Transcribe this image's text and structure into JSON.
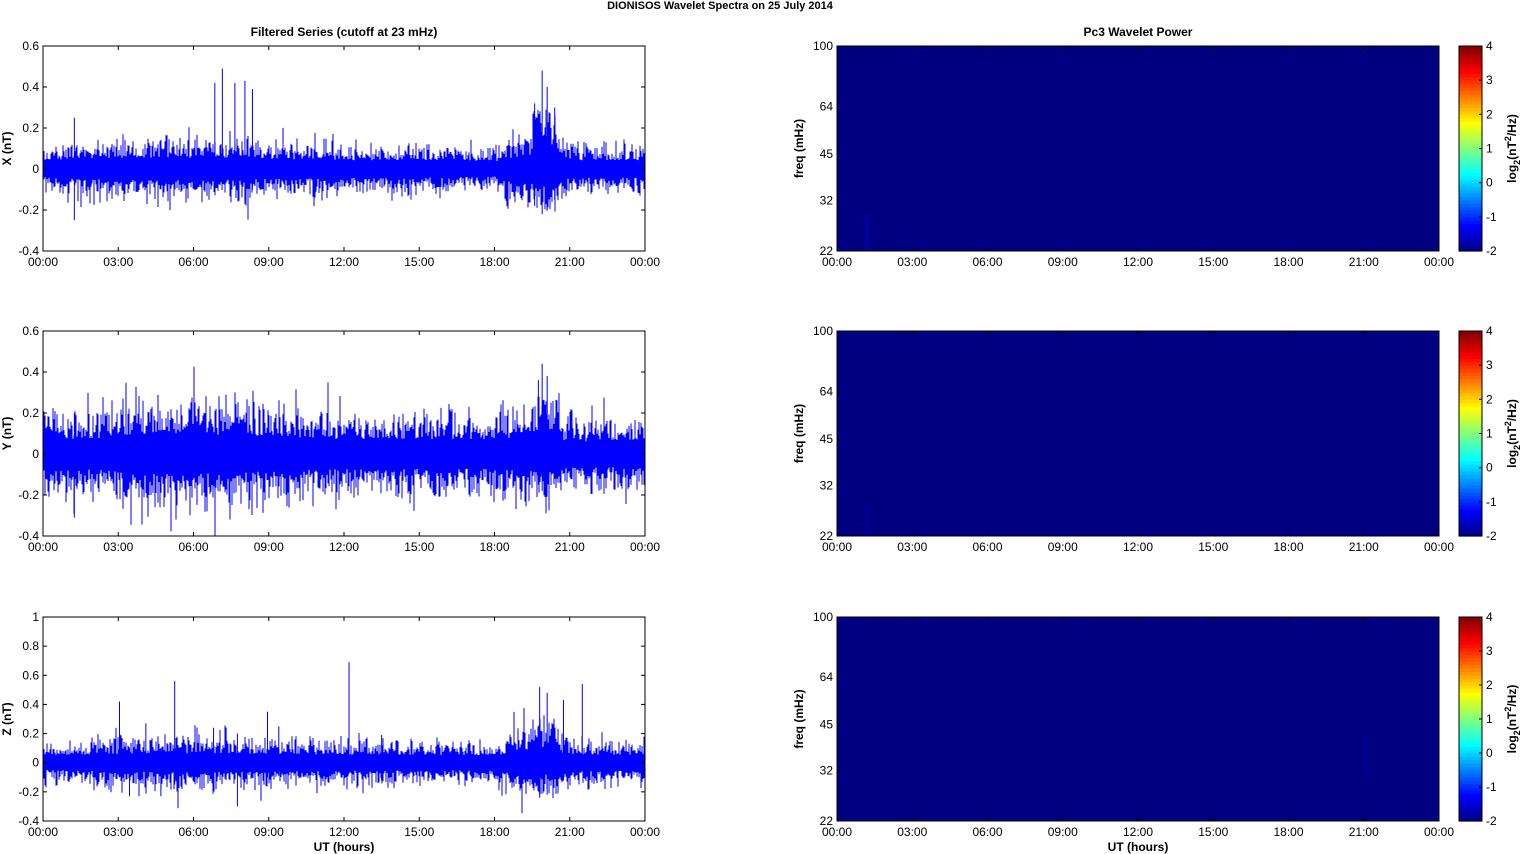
{
  "page": {
    "title": "DIONISOS Wavelet Spectra on 25 July      2014"
  },
  "chart_data": [
    {
      "type": "line",
      "title": "Filtered Series (cutoff at 23 mHz)",
      "ylabel": "X (nT)",
      "xlabel": "",
      "xlim": [
        0,
        24
      ],
      "ylim": [
        -0.4,
        0.6
      ],
      "yticks": [
        "-0.4",
        "-0.2",
        "0",
        "0.2",
        "0.4",
        "0.6"
      ],
      "xticks": [
        "00:00",
        "03:00",
        "06:00",
        "09:00",
        "12:00",
        "15:00",
        "18:00",
        "21:00",
        "00:00"
      ],
      "line_color": "#0000ff",
      "noise_band": [
        [
          0,
          0.03
        ],
        [
          1,
          0.04
        ],
        [
          2,
          0.04
        ],
        [
          4,
          0.045
        ],
        [
          6,
          0.045
        ],
        [
          9,
          0.04
        ],
        [
          12,
          0.035
        ],
        [
          15,
          0.035
        ],
        [
          18,
          0.03
        ],
        [
          19.5,
          0.06
        ],
        [
          20.5,
          0.06
        ],
        [
          21,
          0.035
        ],
        [
          24,
          0.035
        ]
      ],
      "events": [
        {
          "t": 1.25,
          "max": 0.25,
          "min": -0.25
        },
        {
          "t": 6.85,
          "max": 0.42,
          "min": -0.05
        },
        {
          "t": 7.15,
          "max": 0.49,
          "min": -0.06
        },
        {
          "t": 7.65,
          "max": 0.42,
          "min": -0.08
        },
        {
          "t": 8.05,
          "max": 0.43,
          "min": -0.17
        },
        {
          "t": 8.35,
          "max": 0.39,
          "min": -0.1
        },
        {
          "t": 19.6,
          "max": 0.32,
          "min": -0.18
        },
        {
          "t": 19.9,
          "max": 0.48,
          "min": -0.22
        },
        {
          "t": 20.1,
          "max": 0.4,
          "min": -0.2
        },
        {
          "t": 20.4,
          "max": 0.3,
          "min": -0.15
        }
      ],
      "burst": {
        "start": 19.5,
        "end": 20.6,
        "max": 0.3,
        "min": -0.2
      }
    },
    {
      "type": "line",
      "title": "",
      "ylabel": "Y (nT)",
      "xlabel": "",
      "xlim": [
        0,
        24
      ],
      "ylim": [
        -0.4,
        0.6
      ],
      "yticks": [
        "-0.4",
        "-0.2",
        "0",
        "0.2",
        "0.4",
        "0.6"
      ],
      "xticks": [
        "00:00",
        "03:00",
        "06:00",
        "09:00",
        "12:00",
        "15:00",
        "18:00",
        "21:00",
        "00:00"
      ],
      "line_color": "#0000ff",
      "noise_band": [
        [
          0,
          0.06
        ],
        [
          2,
          0.06
        ],
        [
          4,
          0.08
        ],
        [
          6,
          0.08
        ],
        [
          9,
          0.07
        ],
        [
          12,
          0.06
        ],
        [
          15,
          0.06
        ],
        [
          18,
          0.06
        ],
        [
          19.5,
          0.07
        ],
        [
          21,
          0.05
        ],
        [
          24,
          0.055
        ]
      ],
      "events": [
        {
          "t": 1.25,
          "max": 0.2,
          "min": -0.31
        },
        {
          "t": 4.3,
          "max": 0.22,
          "min": -0.1
        },
        {
          "t": 6.7,
          "max": 0.17,
          "min": -0.1
        },
        {
          "t": 19.75,
          "max": 0.36,
          "min": -0.15
        },
        {
          "t": 19.9,
          "max": 0.44,
          "min": -0.18
        },
        {
          "t": 20.1,
          "max": 0.38,
          "min": -0.15
        }
      ],
      "burst": {
        "start": 19.6,
        "end": 20.6,
        "max": 0.3,
        "min": -0.17
      }
    },
    {
      "type": "line",
      "title": "",
      "ylabel": "Z (nT)",
      "xlabel": "UT (hours)",
      "xlim": [
        0,
        24
      ],
      "ylim": [
        -0.4,
        1.0
      ],
      "yticks": [
        "-0.4",
        "-0.2",
        "0",
        "0.2",
        "0.4",
        "0.6",
        "0.8",
        "1"
      ],
      "xticks": [
        "00:00",
        "03:00",
        "06:00",
        "09:00",
        "12:00",
        "15:00",
        "18:00",
        "21:00",
        "00:00"
      ],
      "line_color": "#0000ff",
      "noise_band": [
        [
          0,
          0.04
        ],
        [
          3,
          0.05
        ],
        [
          6,
          0.055
        ],
        [
          9,
          0.05
        ],
        [
          12,
          0.045
        ],
        [
          15,
          0.045
        ],
        [
          18,
          0.04
        ],
        [
          19.5,
          0.08
        ],
        [
          20.6,
          0.05
        ],
        [
          24,
          0.04
        ]
      ],
      "events": [
        {
          "t": 3.05,
          "max": 0.42,
          "min": -0.1
        },
        {
          "t": 3.45,
          "max": 0.1,
          "min": -0.23
        },
        {
          "t": 4.1,
          "max": 0.27,
          "min": -0.15
        },
        {
          "t": 4.7,
          "max": 0.1,
          "min": -0.23
        },
        {
          "t": 5.25,
          "max": 0.56,
          "min": -0.15
        },
        {
          "t": 6.8,
          "max": 0.24,
          "min": -0.1
        },
        {
          "t": 7.3,
          "max": 0.24,
          "min": -0.12
        },
        {
          "t": 7.75,
          "max": 0.2,
          "min": -0.3
        },
        {
          "t": 8.95,
          "max": 0.35,
          "min": -0.1
        },
        {
          "t": 9.4,
          "max": 0.25,
          "min": -0.09
        },
        {
          "t": 12.2,
          "max": 0.69,
          "min": -0.05
        },
        {
          "t": 13.5,
          "max": 0.19,
          "min": -0.12
        },
        {
          "t": 19.8,
          "max": 0.52,
          "min": -0.24
        },
        {
          "t": 20.1,
          "max": 0.48,
          "min": -0.22
        },
        {
          "t": 20.75,
          "max": 0.43,
          "min": -0.12
        },
        {
          "t": 21.5,
          "max": 0.54,
          "min": -0.06
        }
      ],
      "burst": {
        "start": 19.5,
        "end": 20.6,
        "max": 0.35,
        "min": -0.22
      }
    },
    {
      "type": "heatmap",
      "title": "Pc3 Wavelet Power",
      "ylabel": "freq (mHz)",
      "xlabel": "",
      "xlim": [
        0,
        24
      ],
      "ylim": [
        22,
        100
      ],
      "yscale": "log",
      "yticks": [
        "22",
        "32",
        "45",
        "64",
        "100"
      ],
      "xticks": [
        "00:00",
        "03:00",
        "06:00",
        "09:00",
        "12:00",
        "15:00",
        "18:00",
        "21:00",
        "00:00"
      ],
      "value": -2,
      "colorbar": {
        "ticks": [
          "-2",
          "-1",
          "0",
          "1",
          "2",
          "3",
          "4"
        ],
        "range": [
          -2,
          4
        ],
        "label": "log2(nT2/Hz)"
      },
      "streaks": [
        {
          "t": 1.2,
          "fmin": 22,
          "fmax": 29,
          "value": -1.7
        }
      ]
    },
    {
      "type": "heatmap",
      "title": "",
      "ylabel": "freq (mHz)",
      "xlabel": "",
      "xlim": [
        0,
        24
      ],
      "ylim": [
        22,
        100
      ],
      "yscale": "log",
      "yticks": [
        "22",
        "32",
        "45",
        "64",
        "100"
      ],
      "xticks": [
        "00:00",
        "03:00",
        "06:00",
        "09:00",
        "12:00",
        "15:00",
        "18:00",
        "21:00",
        "00:00"
      ],
      "value": -2,
      "colorbar": {
        "ticks": [
          "-2",
          "-1",
          "0",
          "1",
          "2",
          "3",
          "4"
        ],
        "range": [
          -2,
          4
        ],
        "label": "log2(nT2/Hz)"
      },
      "streaks": [
        {
          "t": 1.2,
          "fmin": 22,
          "fmax": 28,
          "value": -1.8
        }
      ]
    },
    {
      "type": "heatmap",
      "title": "",
      "ylabel": "freq (mHz)",
      "xlabel": "UT (hours)",
      "xlim": [
        0,
        24
      ],
      "ylim": [
        22,
        100
      ],
      "yscale": "log",
      "yticks": [
        "22",
        "32",
        "45",
        "64",
        "100"
      ],
      "xticks": [
        "00:00",
        "03:00",
        "06:00",
        "09:00",
        "12:00",
        "15:00",
        "18:00",
        "21:00",
        "00:00"
      ],
      "value": -2,
      "colorbar": {
        "ticks": [
          "-2",
          "-1",
          "0",
          "1",
          "2",
          "3",
          "4"
        ],
        "range": [
          -2,
          4
        ],
        "label": "log2(nT2/Hz)"
      },
      "streaks": [
        {
          "t": 21.1,
          "fmin": 30,
          "fmax": 42,
          "value": -1.8
        }
      ]
    }
  ]
}
